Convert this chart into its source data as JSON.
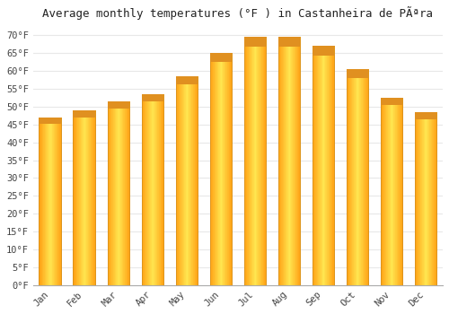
{
  "title": "Average monthly temperatures (°F ) in Castanheira de PÃªra",
  "months": [
    "Jan",
    "Feb",
    "Mar",
    "Apr",
    "May",
    "Jun",
    "Jul",
    "Aug",
    "Sep",
    "Oct",
    "Nov",
    "Dec"
  ],
  "values": [
    47,
    49,
    51.5,
    53.5,
    58.5,
    65,
    69.5,
    69.5,
    67,
    60.5,
    52.5,
    48.5
  ],
  "bar_color_center": "#FFD580",
  "bar_color_edge": "#F0A020",
  "ylim": [
    0,
    73
  ],
  "yticks": [
    0,
    5,
    10,
    15,
    20,
    25,
    30,
    35,
    40,
    45,
    50,
    55,
    60,
    65,
    70
  ],
  "ytick_labels": [
    "0°F",
    "5°F",
    "10°F",
    "15°F",
    "20°F",
    "25°F",
    "30°F",
    "35°F",
    "40°F",
    "45°F",
    "50°F",
    "55°F",
    "60°F",
    "65°F",
    "70°F"
  ],
  "background_color": "#FFFFFF",
  "grid_color": "#E8E8E8",
  "title_fontsize": 9,
  "tick_fontsize": 7.5,
  "bar_width": 0.65
}
